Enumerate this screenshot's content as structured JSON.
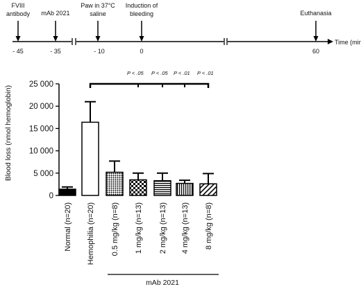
{
  "timeline": {
    "events": [
      {
        "label_lines": [
          "FVIII",
          "antibody"
        ],
        "tick": "- 45"
      },
      {
        "label_lines": [
          "mAb 2021"
        ],
        "tick": "- 35"
      },
      {
        "label_lines": [
          "Paw in 37°C",
          "saline"
        ],
        "tick": "-   10"
      },
      {
        "label_lines": [
          "Induction of",
          "bleeding"
        ],
        "tick": "0"
      },
      {
        "label_lines": [
          "Euthanasia"
        ],
        "tick": "60"
      }
    ],
    "axis_label": "Time (min)"
  },
  "chart_data": {
    "type": "bar",
    "ylabel": "Blood loss (nmol hemoglobin)",
    "ylim": [
      0,
      25000
    ],
    "yticks": [
      "0",
      "5 000",
      "10 000",
      "15 000",
      "20 000",
      "25 000"
    ],
    "ytick_values": [
      0,
      5000,
      10000,
      15000,
      20000,
      25000
    ],
    "categories": [
      "Normal (n=20)",
      "Hemophilia (n=20)",
      "0.5 mg/kg (n=8)",
      "1 mg/kg (n=13)",
      "2 mg/kg (n=13)",
      "4 mg/kg (n=13)",
      "8 mg/kg (n=8)"
    ],
    "values": [
      1400,
      16400,
      5200,
      3500,
      3300,
      2700,
      2600
    ],
    "error_upper": [
      1900,
      21000,
      7700,
      5000,
      5000,
      3400,
      4900
    ],
    "fills": [
      "solid-black",
      "white",
      "dense-dots",
      "checker",
      "horizontal-stripes",
      "vertical-stripes",
      "diagonal-stripes"
    ],
    "significance": [
      "P < .05",
      "P < .05",
      "P < .01",
      "P < .01"
    ],
    "group_label": "mAb 2021"
  }
}
